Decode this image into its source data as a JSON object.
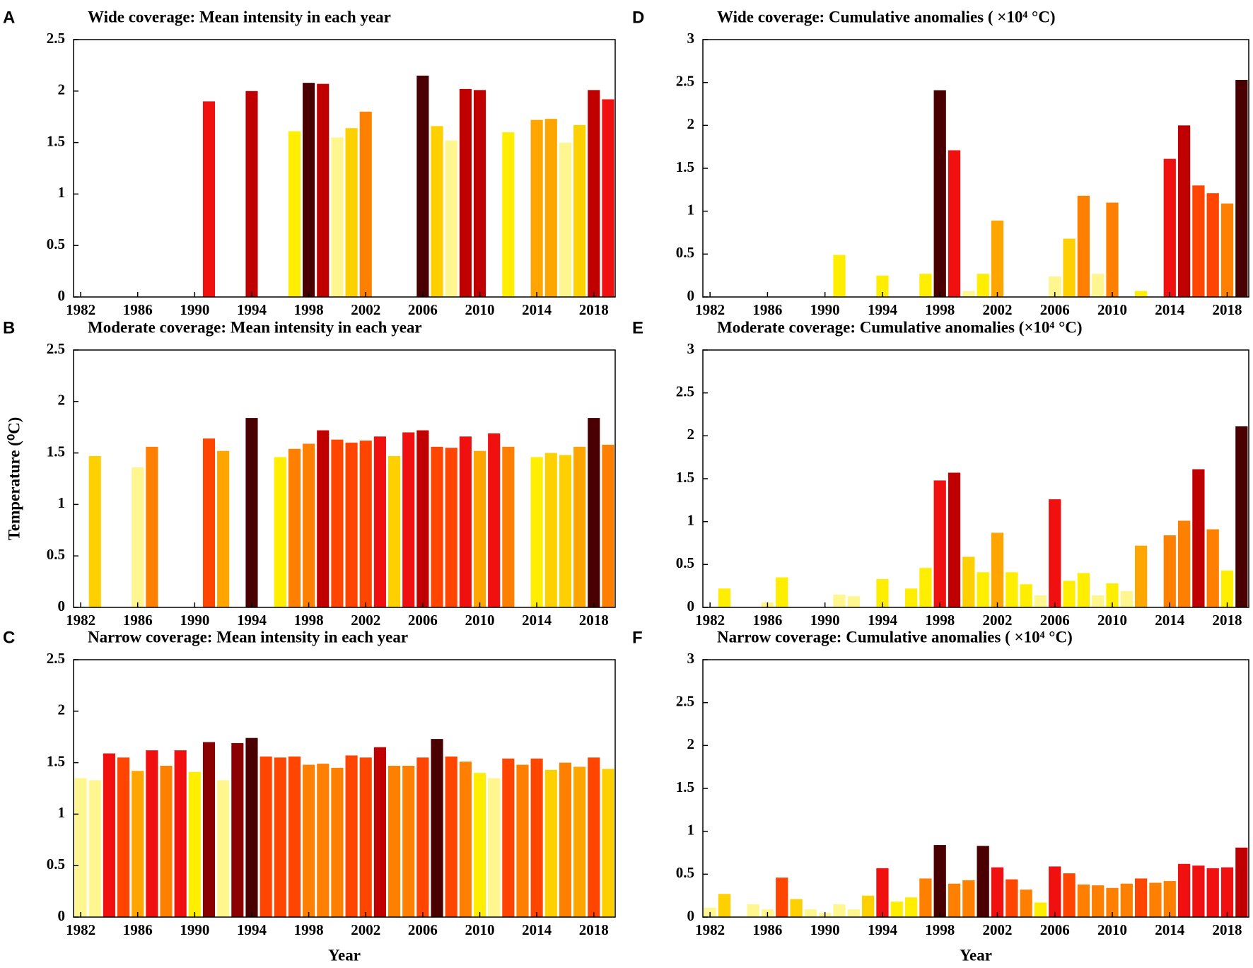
{
  "chart_data": [
    {
      "type": "bar",
      "panel": "A",
      "title": "Wide coverage: Mean intensity in each year",
      "x": [
        1982,
        1983,
        1984,
        1985,
        1986,
        1987,
        1988,
        1989,
        1990,
        1991,
        1992,
        1993,
        1994,
        1995,
        1996,
        1997,
        1998,
        1999,
        2000,
        2001,
        2002,
        2003,
        2004,
        2005,
        2006,
        2007,
        2008,
        2009,
        2010,
        2011,
        2012,
        2013,
        2014,
        2015,
        2016,
        2017,
        2018,
        2019
      ],
      "values": [
        null,
        null,
        null,
        null,
        null,
        null,
        null,
        null,
        null,
        1.9,
        null,
        null,
        2.0,
        null,
        null,
        1.61,
        2.08,
        2.07,
        1.55,
        1.64,
        1.8,
        null,
        null,
        null,
        2.15,
        1.66,
        1.52,
        2.02,
        2.01,
        null,
        1.6,
        null,
        1.72,
        1.73,
        1.5,
        1.67,
        2.01,
        1.92
      ],
      "colors": [
        null,
        null,
        null,
        null,
        null,
        null,
        null,
        null,
        null,
        "#f01010",
        null,
        null,
        "#c00000",
        null,
        null,
        "#ffee00",
        "#4a0000",
        "#c00000",
        "#fff68f",
        "#ffd000",
        "#ff8000",
        null,
        null,
        null,
        "#4a0000",
        "#ffd000",
        "#fff68f",
        "#c00000",
        "#c00000",
        null,
        "#ffee00",
        null,
        "#ffa500",
        "#ffa500",
        "#fff68f",
        "#ffd000",
        "#c00000",
        "#f01010"
      ],
      "xlim": [
        1981.5,
        2019.5
      ],
      "xticks": [
        1982,
        1986,
        1990,
        1994,
        1998,
        2002,
        2006,
        2010,
        2014,
        2018
      ],
      "ylim": [
        0,
        2.5
      ],
      "yticks": [
        0,
        0.5,
        1,
        1.5,
        2,
        2.5
      ]
    },
    {
      "type": "bar",
      "panel": "B",
      "title": "Moderate coverage: Mean intensity in each year",
      "ylabel": "Temperature (⁰C)",
      "x": [
        1982,
        1983,
        1984,
        1985,
        1986,
        1987,
        1988,
        1989,
        1990,
        1991,
        1992,
        1993,
        1994,
        1995,
        1996,
        1997,
        1998,
        1999,
        2000,
        2001,
        2002,
        2003,
        2004,
        2005,
        2006,
        2007,
        2008,
        2009,
        2010,
        2011,
        2012,
        2013,
        2014,
        2015,
        2016,
        2017,
        2018,
        2019
      ],
      "values": [
        null,
        1.47,
        null,
        null,
        1.36,
        1.56,
        null,
        null,
        null,
        1.64,
        1.52,
        null,
        1.84,
        null,
        1.46,
        1.54,
        1.59,
        1.72,
        1.63,
        1.6,
        1.62,
        1.66,
        1.47,
        1.7,
        1.72,
        1.56,
        1.55,
        1.66,
        1.52,
        1.69,
        1.56,
        null,
        1.46,
        1.5,
        1.48,
        1.56,
        1.84,
        1.58
      ],
      "colors": [
        null,
        "#ffd000",
        null,
        null,
        "#fff68f",
        "#ff8000",
        null,
        null,
        null,
        "#ff4500",
        "#ffa500",
        null,
        "#4a0000",
        null,
        "#ffee00",
        "#ff8000",
        "#ff8000",
        "#c00000",
        "#ff4500",
        "#ff4500",
        "#ff4500",
        "#f01010",
        "#ffd000",
        "#f01010",
        "#c00000",
        "#ff4500",
        "#ff4500",
        "#f01010",
        "#ffa500",
        "#f01010",
        "#ff8000",
        null,
        "#ffee00",
        "#ffd000",
        "#ffd000",
        "#ffa500",
        "#4a0000",
        "#ff8000"
      ],
      "xlim": [
        1981.5,
        2019.5
      ],
      "xticks": [
        1982,
        1986,
        1990,
        1994,
        1998,
        2002,
        2006,
        2010,
        2014,
        2018
      ],
      "ylim": [
        0,
        2.5
      ],
      "yticks": [
        0,
        0.5,
        1,
        1.5,
        2,
        2.5
      ]
    },
    {
      "type": "bar",
      "panel": "C",
      "title": "Narrow coverage: Mean intensity in each year",
      "xlabel": "Year",
      "x": [
        1982,
        1983,
        1984,
        1985,
        1986,
        1987,
        1988,
        1989,
        1990,
        1991,
        1992,
        1993,
        1994,
        1995,
        1996,
        1997,
        1998,
        1999,
        2000,
        2001,
        2002,
        2003,
        2004,
        2005,
        2006,
        2007,
        2008,
        2009,
        2010,
        2011,
        2012,
        2013,
        2014,
        2015,
        2016,
        2017,
        2018,
        2019
      ],
      "values": [
        1.35,
        1.33,
        1.59,
        1.55,
        1.42,
        1.62,
        1.47,
        1.62,
        1.41,
        1.7,
        1.33,
        1.69,
        1.74,
        1.56,
        1.55,
        1.56,
        1.48,
        1.49,
        1.45,
        1.57,
        1.55,
        1.65,
        1.47,
        1.47,
        1.55,
        1.73,
        1.56,
        1.51,
        1.4,
        1.35,
        1.54,
        1.48,
        1.54,
        1.43,
        1.5,
        1.46,
        1.55,
        1.44
      ],
      "colors": [
        "#fff68f",
        "#fff68f",
        "#f01010",
        "#ff4500",
        "#ffa500",
        "#f01010",
        "#ff8000",
        "#f01010",
        "#ffee00",
        "#8b0000",
        "#fff68f",
        "#8b0000",
        "#4a0000",
        "#ff4500",
        "#ff4500",
        "#ff4500",
        "#ff8000",
        "#ff8000",
        "#ff8000",
        "#ff4500",
        "#ff4500",
        "#c00000",
        "#ff8000",
        "#ff8000",
        "#ff4500",
        "#4a0000",
        "#ff4500",
        "#ff8000",
        "#ffee00",
        "#fff68f",
        "#ff4500",
        "#ff8000",
        "#ff4500",
        "#ffd000",
        "#ff8000",
        "#ffa500",
        "#ff4500",
        "#ffd000"
      ],
      "xlim": [
        1981.5,
        2019.5
      ],
      "xticks": [
        1982,
        1986,
        1990,
        1994,
        1998,
        2002,
        2006,
        2010,
        2014,
        2018
      ],
      "ylim": [
        0,
        2.5
      ],
      "yticks": [
        0,
        0.5,
        1,
        1.5,
        2,
        2.5
      ]
    },
    {
      "type": "bar",
      "panel": "D",
      "title": "Wide coverage: Cumulative anomalies ( ×10⁴ °C)",
      "x": [
        1982,
        1983,
        1984,
        1985,
        1986,
        1987,
        1988,
        1989,
        1990,
        1991,
        1992,
        1993,
        1994,
        1995,
        1996,
        1997,
        1998,
        1999,
        2000,
        2001,
        2002,
        2003,
        2004,
        2005,
        2006,
        2007,
        2008,
        2009,
        2010,
        2011,
        2012,
        2013,
        2014,
        2015,
        2016,
        2017,
        2018,
        2019
      ],
      "values": [
        null,
        null,
        null,
        null,
        null,
        null,
        null,
        null,
        null,
        0.49,
        null,
        null,
        0.25,
        null,
        null,
        0.27,
        2.41,
        1.71,
        0.07,
        0.27,
        0.89,
        null,
        null,
        null,
        0.24,
        0.68,
        1.18,
        0.27,
        1.1,
        null,
        0.07,
        null,
        1.61,
        2.0,
        1.3,
        1.21,
        1.09,
        2.53
      ],
      "colors": [
        null,
        null,
        null,
        null,
        null,
        null,
        null,
        null,
        null,
        "#ffee00",
        null,
        null,
        "#ffee00",
        null,
        null,
        "#ffee00",
        "#4a0000",
        "#f01010",
        "#fff68f",
        "#ffee00",
        "#ffa500",
        null,
        null,
        null,
        "#fff68f",
        "#ffd000",
        "#ff8000",
        "#fff68f",
        "#ff8000",
        null,
        "#ffee00",
        null,
        "#f01010",
        "#c00000",
        "#ff4500",
        "#ff4500",
        "#ff8000",
        "#4a0000"
      ],
      "xlim": [
        1981.5,
        2019.5
      ],
      "xticks": [
        1982,
        1986,
        1990,
        1994,
        1998,
        2002,
        2006,
        2010,
        2014,
        2018
      ],
      "ylim": [
        0,
        3
      ],
      "yticks": [
        0,
        0.5,
        1,
        1.5,
        2,
        2.5,
        3
      ]
    },
    {
      "type": "bar",
      "panel": "E",
      "title": "Moderate coverage: Cumulative anomalies (×10⁴ °C)",
      "x": [
        1982,
        1983,
        1984,
        1985,
        1986,
        1987,
        1988,
        1989,
        1990,
        1991,
        1992,
        1993,
        1994,
        1995,
        1996,
        1997,
        1998,
        1999,
        2000,
        2001,
        2002,
        2003,
        2004,
        2005,
        2006,
        2007,
        2008,
        2009,
        2010,
        2011,
        2012,
        2013,
        2014,
        2015,
        2016,
        2017,
        2018,
        2019
      ],
      "values": [
        null,
        0.22,
        null,
        null,
        0.06,
        0.35,
        null,
        null,
        null,
        0.15,
        0.13,
        null,
        0.33,
        null,
        0.22,
        0.46,
        1.48,
        1.57,
        0.59,
        0.41,
        0.87,
        0.41,
        0.27,
        0.14,
        1.26,
        0.31,
        0.4,
        0.14,
        0.28,
        0.19,
        0.72,
        null,
        0.84,
        1.01,
        1.61,
        0.91,
        0.43,
        2.11
      ],
      "colors": [
        null,
        "#ffee00",
        null,
        null,
        "#fff68f",
        "#ffee00",
        null,
        null,
        null,
        "#fff68f",
        "#fff68f",
        null,
        "#ffee00",
        null,
        "#ffee00",
        "#ffee00",
        "#f01010",
        "#c00000",
        "#ffd000",
        "#ffee00",
        "#ffa500",
        "#ffee00",
        "#ffee00",
        "#fff68f",
        "#f01010",
        "#ffee00",
        "#ffee00",
        "#fff68f",
        "#ffee00",
        "#fff68f",
        "#ffa500",
        null,
        "#ff8000",
        "#ff8000",
        "#c00000",
        "#ff8000",
        "#ffee00",
        "#4a0000"
      ],
      "xlim": [
        1981.5,
        2019.5
      ],
      "xticks": [
        1982,
        1986,
        1990,
        1994,
        1998,
        2002,
        2006,
        2010,
        2014,
        2018
      ],
      "ylim": [
        0,
        3
      ],
      "yticks": [
        0,
        0.5,
        1,
        1.5,
        2,
        2.5,
        3
      ]
    },
    {
      "type": "bar",
      "panel": "F",
      "title": "Narrow coverage: Cumulative anomalies ( ×10⁴ °C)",
      "xlabel": "Year",
      "x": [
        1982,
        1983,
        1984,
        1985,
        1986,
        1987,
        1988,
        1989,
        1990,
        1991,
        1992,
        1993,
        1994,
        1995,
        1996,
        1997,
        1998,
        1999,
        2000,
        2001,
        2002,
        2003,
        2004,
        2005,
        2006,
        2007,
        2008,
        2009,
        2010,
        2011,
        2012,
        2013,
        2014,
        2015,
        2016,
        2017,
        2018,
        2019
      ],
      "values": [
        0.11,
        0.27,
        0.01,
        0.15,
        0.09,
        0.46,
        0.21,
        0.09,
        0.05,
        0.15,
        0.09,
        0.25,
        0.57,
        0.18,
        0.23,
        0.45,
        0.84,
        0.39,
        0.43,
        0.83,
        0.58,
        0.44,
        0.32,
        0.17,
        0.59,
        0.51,
        0.38,
        0.37,
        0.34,
        0.39,
        0.45,
        0.4,
        0.42,
        0.62,
        0.6,
        0.57,
        0.58,
        0.81
      ],
      "colors": [
        "#fff68f",
        "#ffd000",
        "#fff68f",
        "#fff68f",
        "#fff68f",
        "#ff4500",
        "#ffd000",
        "#fff68f",
        "#fff68f",
        "#fff68f",
        "#fff68f",
        "#ffd000",
        "#f01010",
        "#ffee00",
        "#ffee00",
        "#ff8000",
        "#4a0000",
        "#ff8000",
        "#ff8000",
        "#4a0000",
        "#f01010",
        "#ff4500",
        "#ff8000",
        "#ffee00",
        "#f01010",
        "#ff4500",
        "#ff8000",
        "#ff8000",
        "#ff8000",
        "#ff8000",
        "#ff4500",
        "#ff8000",
        "#ff8000",
        "#f01010",
        "#f01010",
        "#f01010",
        "#f01010",
        "#c00000"
      ],
      "xlim": [
        1981.5,
        2019.5
      ],
      "xticks": [
        1982,
        1986,
        1990,
        1994,
        1998,
        2002,
        2006,
        2010,
        2014,
        2018
      ],
      "ylim": [
        0,
        3
      ],
      "yticks": [
        0,
        0.5,
        1,
        1.5,
        2,
        2.5,
        3
      ]
    }
  ]
}
